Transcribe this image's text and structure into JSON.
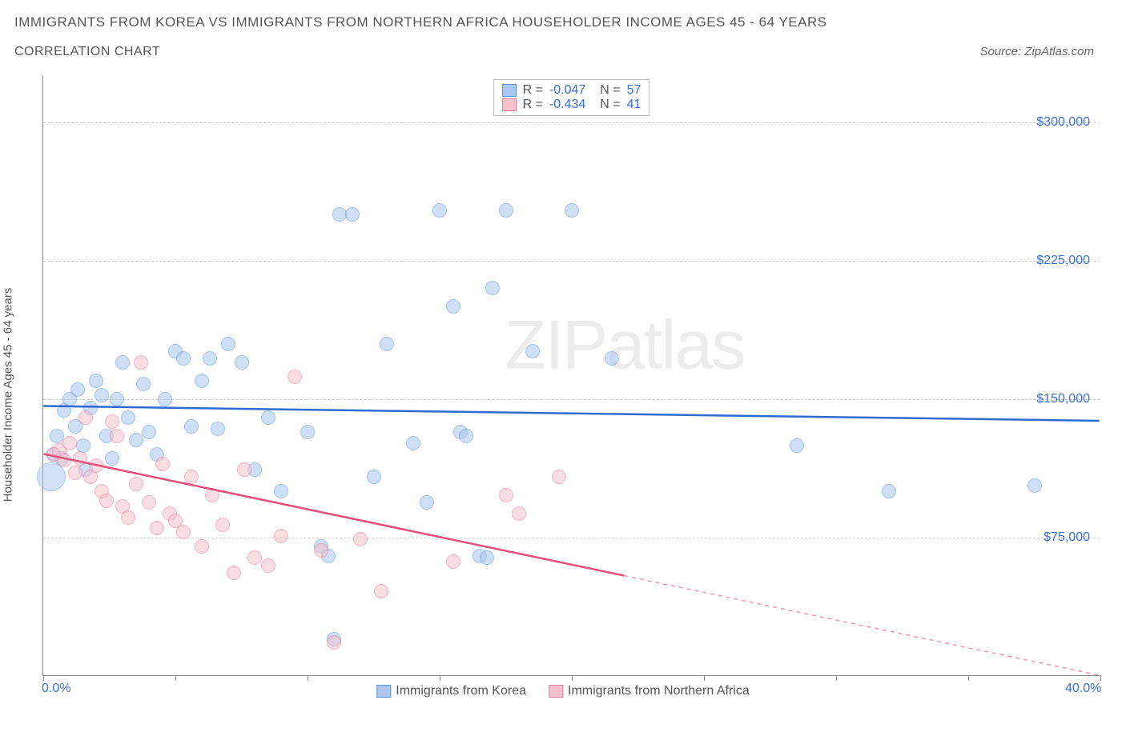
{
  "title": "IMMIGRANTS FROM KOREA VS IMMIGRANTS FROM NORTHERN AFRICA HOUSEHOLDER INCOME AGES 45 - 64 YEARS",
  "subtitle": "CORRELATION CHART",
  "source": "Source: ZipAtlas.com",
  "watermark_a": "ZIP",
  "watermark_b": "atlas",
  "y_axis_label": "Householder Income Ages 45 - 64 years",
  "chart": {
    "type": "scatter",
    "xlim": [
      0,
      40
    ],
    "ylim": [
      0,
      325000
    ],
    "x_ticks": [
      0,
      5,
      10,
      15,
      20,
      25,
      30,
      35,
      40
    ],
    "x_tick_labels_shown": {
      "0": "0.0%",
      "40": "40.0%"
    },
    "y_ticks": [
      75000,
      150000,
      225000,
      300000
    ],
    "y_tick_labels": [
      "$75,000",
      "$150,000",
      "$225,000",
      "$300,000"
    ],
    "grid_color": "#d0d0d0",
    "axis_color": "#888888",
    "background_color": "#ffffff",
    "point_radius": 9,
    "point_opacity": 0.55,
    "series": [
      {
        "name": "Immigrants from Korea",
        "fill": "#a9c7ef",
        "stroke": "#5e8fd4",
        "trend_color": "#2e6bd1",
        "R": "-0.047",
        "N": "57",
        "trend": {
          "x1": 0,
          "y1": 146000,
          "x2": 40,
          "y2": 138000,
          "solid_until_x": 40
        },
        "points": [
          [
            0.4,
            120000
          ],
          [
            0.5,
            130000
          ],
          [
            0.7,
            118000
          ],
          [
            0.8,
            144000
          ],
          [
            1.0,
            150000
          ],
          [
            1.2,
            135000
          ],
          [
            1.3,
            155000
          ],
          [
            1.5,
            125000
          ],
          [
            1.6,
            112000
          ],
          [
            1.8,
            145000
          ],
          [
            2.0,
            160000
          ],
          [
            2.2,
            152000
          ],
          [
            2.4,
            130000
          ],
          [
            2.6,
            118000
          ],
          [
            2.8,
            150000
          ],
          [
            3.0,
            170000
          ],
          [
            3.2,
            140000
          ],
          [
            3.5,
            128000
          ],
          [
            3.8,
            158000
          ],
          [
            4.0,
            132000
          ],
          [
            4.3,
            120000
          ],
          [
            4.6,
            150000
          ],
          [
            5.0,
            176000
          ],
          [
            5.3,
            172000
          ],
          [
            5.6,
            135000
          ],
          [
            6.0,
            160000
          ],
          [
            6.3,
            172000
          ],
          [
            6.6,
            134000
          ],
          [
            7.0,
            180000
          ],
          [
            7.5,
            170000
          ],
          [
            8.0,
            112000
          ],
          [
            8.5,
            140000
          ],
          [
            9.0,
            100000
          ],
          [
            10.0,
            132000
          ],
          [
            10.5,
            70000
          ],
          [
            10.8,
            65000
          ],
          [
            11.0,
            20000
          ],
          [
            11.2,
            250000
          ],
          [
            11.7,
            250000
          ],
          [
            12.5,
            108000
          ],
          [
            13.0,
            180000
          ],
          [
            14.0,
            126000
          ],
          [
            14.5,
            94000
          ],
          [
            15.0,
            252000
          ],
          [
            15.5,
            200000
          ],
          [
            15.8,
            132000
          ],
          [
            16.0,
            130000
          ],
          [
            16.5,
            65000
          ],
          [
            16.8,
            64000
          ],
          [
            17.0,
            210000
          ],
          [
            17.5,
            252000
          ],
          [
            18.5,
            176000
          ],
          [
            20.0,
            252000
          ],
          [
            21.5,
            172000
          ],
          [
            28.5,
            125000
          ],
          [
            32.0,
            100000
          ],
          [
            37.5,
            103000
          ]
        ],
        "big_point": {
          "x": 0.3,
          "y": 108000,
          "r": 18
        }
      },
      {
        "name": "Immigrants from Northern Africa",
        "fill": "#f4c2cd",
        "stroke": "#e87a97",
        "trend_color": "#e84e7a",
        "R": "-0.434",
        "N": "41",
        "trend": {
          "x1": 0,
          "y1": 120000,
          "x2": 40,
          "y2": 0,
          "solid_until_x": 22
        },
        "points": [
          [
            0.4,
            120000
          ],
          [
            0.6,
            122000
          ],
          [
            0.8,
            117000
          ],
          [
            1.0,
            126000
          ],
          [
            1.2,
            110000
          ],
          [
            1.4,
            118000
          ],
          [
            1.6,
            140000
          ],
          [
            1.8,
            108000
          ],
          [
            2.0,
            114000
          ],
          [
            2.2,
            100000
          ],
          [
            2.4,
            95000
          ],
          [
            2.6,
            138000
          ],
          [
            2.8,
            130000
          ],
          [
            3.0,
            92000
          ],
          [
            3.2,
            86000
          ],
          [
            3.5,
            104000
          ],
          [
            3.7,
            170000
          ],
          [
            4.0,
            94000
          ],
          [
            4.3,
            80000
          ],
          [
            4.5,
            115000
          ],
          [
            4.8,
            88000
          ],
          [
            5.0,
            84000
          ],
          [
            5.3,
            78000
          ],
          [
            5.6,
            108000
          ],
          [
            6.0,
            70000
          ],
          [
            6.4,
            98000
          ],
          [
            6.8,
            82000
          ],
          [
            7.2,
            56000
          ],
          [
            7.6,
            112000
          ],
          [
            8.0,
            64000
          ],
          [
            8.5,
            60000
          ],
          [
            9.0,
            76000
          ],
          [
            9.5,
            162000
          ],
          [
            10.5,
            68000
          ],
          [
            11.0,
            18000
          ],
          [
            12.0,
            74000
          ],
          [
            12.8,
            46000
          ],
          [
            15.5,
            62000
          ],
          [
            17.5,
            98000
          ],
          [
            18.0,
            88000
          ],
          [
            19.5,
            108000
          ]
        ]
      }
    ],
    "legend_bottom": [
      "Immigrants from Korea",
      "Immigrants from Northern Africa"
    ]
  }
}
